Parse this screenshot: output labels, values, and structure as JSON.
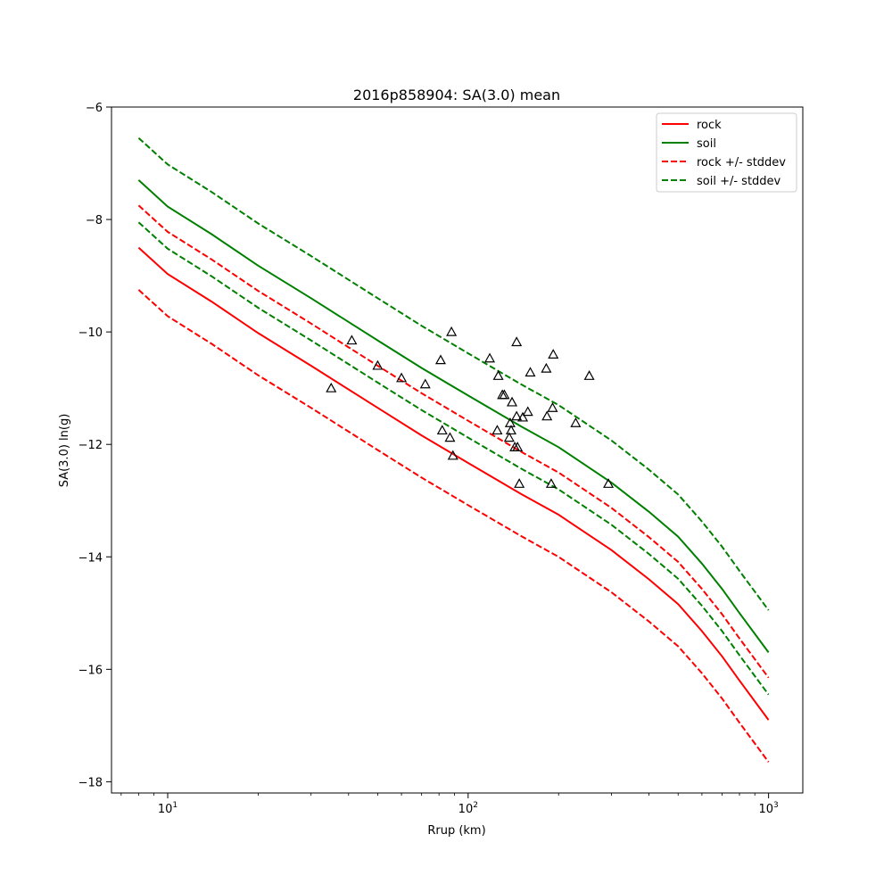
{
  "chart_data": {
    "type": "line",
    "title": "2016p858904: SA(3.0) mean",
    "xlabel": "Rrup (km)",
    "ylabel": "SA(3.0) ln(g)",
    "xscale": "log",
    "xlim": [
      6.5,
      1300
    ],
    "ylim": [
      -18.2,
      -6
    ],
    "xticks": [
      {
        "value": 10,
        "label": "10",
        "exp": "1"
      },
      {
        "value": 100,
        "label": "10",
        "exp": "2"
      },
      {
        "value": 1000,
        "label": "10",
        "exp": "3"
      }
    ],
    "yticks": [
      -18,
      -16,
      -14,
      -12,
      -10,
      -8,
      -6
    ],
    "ytick_labels": [
      "−18",
      "−16",
      "−14",
      "−12",
      "−10",
      "−8",
      "−6"
    ],
    "legend_position": "top-right",
    "grid": false,
    "series": [
      {
        "name": "rock",
        "color": "#ff0000",
        "style": "solid",
        "x": [
          8,
          10,
          14,
          20,
          30,
          50,
          70,
          100,
          150,
          200,
          300,
          400,
          500,
          600,
          700,
          800,
          1000
        ],
        "y": [
          -8.5,
          -8.97,
          -9.46,
          -10.02,
          -10.6,
          -11.35,
          -11.84,
          -12.33,
          -12.88,
          -13.25,
          -13.88,
          -14.4,
          -14.84,
          -15.32,
          -15.77,
          -16.2,
          -16.9
        ]
      },
      {
        "name": "soil",
        "color": "#008000",
        "style": "solid",
        "x": [
          8,
          10,
          14,
          20,
          30,
          50,
          70,
          100,
          150,
          200,
          300,
          400,
          500,
          600,
          700,
          800,
          1000
        ],
        "y": [
          -7.3,
          -7.77,
          -8.26,
          -8.82,
          -9.4,
          -10.15,
          -10.64,
          -11.13,
          -11.68,
          -12.05,
          -12.68,
          -13.2,
          -13.64,
          -14.12,
          -14.57,
          -15.0,
          -15.7
        ]
      },
      {
        "name": "rock +/- stddev",
        "color": "#ff0000",
        "style": "dashed",
        "x": [
          8,
          10,
          14,
          20,
          30,
          50,
          70,
          100,
          150,
          200,
          300,
          400,
          500,
          600,
          700,
          800,
          1000
        ],
        "y": [
          -7.75,
          -8.22,
          -8.71,
          -9.27,
          -9.85,
          -10.6,
          -11.09,
          -11.58,
          -12.13,
          -12.5,
          -13.13,
          -13.65,
          -14.09,
          -14.57,
          -15.02,
          -15.45,
          -16.15
        ]
      },
      {
        "name": "",
        "color": "#ff0000",
        "style": "dashed",
        "x": [
          8,
          10,
          14,
          20,
          30,
          50,
          70,
          100,
          150,
          200,
          300,
          400,
          500,
          600,
          700,
          800,
          1000
        ],
        "y": [
          -9.25,
          -9.72,
          -10.21,
          -10.77,
          -11.35,
          -12.1,
          -12.59,
          -13.08,
          -13.63,
          -14.0,
          -14.63,
          -15.15,
          -15.59,
          -16.07,
          -16.52,
          -16.95,
          -17.65
        ]
      },
      {
        "name": "soil +/- stddev",
        "color": "#008000",
        "style": "dashed",
        "x": [
          8,
          10,
          14,
          20,
          30,
          50,
          70,
          100,
          150,
          200,
          300,
          400,
          500,
          600,
          700,
          800,
          1000
        ],
        "y": [
          -6.55,
          -7.02,
          -7.51,
          -8.07,
          -8.65,
          -9.4,
          -9.89,
          -10.38,
          -10.93,
          -11.3,
          -11.93,
          -12.45,
          -12.89,
          -13.37,
          -13.82,
          -14.25,
          -14.95
        ]
      },
      {
        "name": "",
        "color": "#008000",
        "style": "dashed",
        "x": [
          8,
          10,
          14,
          20,
          30,
          50,
          70,
          100,
          150,
          200,
          300,
          400,
          500,
          600,
          700,
          800,
          1000
        ],
        "y": [
          -8.05,
          -8.52,
          -9.01,
          -9.57,
          -10.15,
          -10.9,
          -11.39,
          -11.88,
          -12.43,
          -12.8,
          -13.43,
          -13.95,
          -14.39,
          -14.87,
          -15.32,
          -15.75,
          -16.45
        ]
      }
    ],
    "observations": {
      "marker": "triangle",
      "color": "#000000",
      "x": [
        35,
        41,
        50,
        60,
        72,
        81,
        82,
        87,
        89,
        88,
        118,
        126,
        125,
        130,
        132,
        137,
        138,
        140,
        139,
        143,
        145,
        145,
        146,
        148,
        152,
        158,
        161,
        182,
        183,
        189,
        192,
        191,
        228,
        253,
        293
      ],
      "y": [
        -11.0,
        -10.15,
        -10.6,
        -10.82,
        -10.93,
        -10.5,
        -11.75,
        -11.88,
        -12.2,
        -10.0,
        -10.47,
        -10.78,
        -11.75,
        -11.12,
        -11.12,
        -11.88,
        -11.62,
        -11.25,
        -11.75,
        -12.05,
        -10.18,
        -11.5,
        -12.05,
        -12.7,
        -11.52,
        -11.42,
        -10.72,
        -10.65,
        -11.5,
        -12.7,
        -10.4,
        -11.35,
        -11.62,
        -10.78,
        -12.7
      ]
    }
  }
}
